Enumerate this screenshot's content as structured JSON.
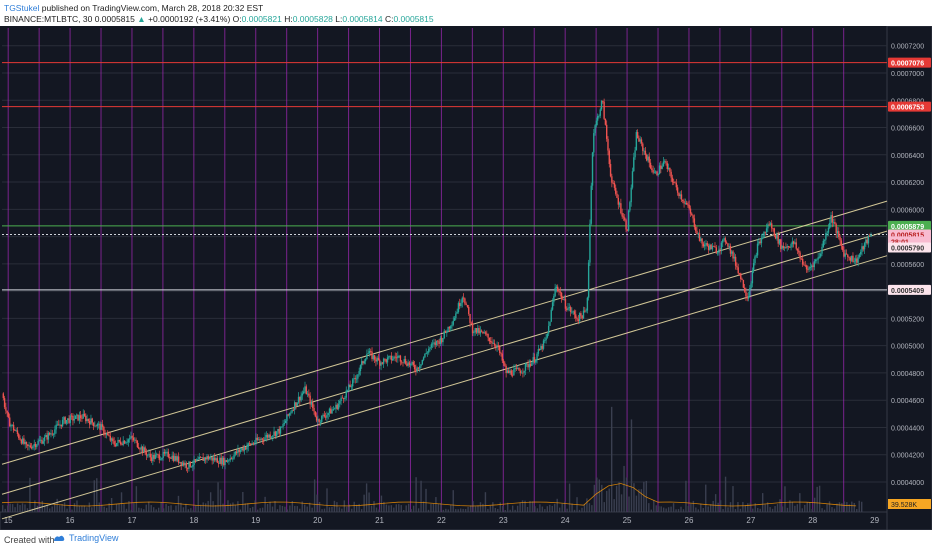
{
  "header": {
    "author": "TGStukel",
    "published": " published on TradingView.com, March 28, 2018 20:32 EST",
    "symbol": "BINANCE:MTLBTC, 30",
    "last": "0.0005815",
    "change_arrow": "▲",
    "change": "+0.0000192 (+3.41%)",
    "o_label": "O:",
    "o": "0.0005821",
    "h_label": "H:",
    "h": "0.0005828",
    "l_label": "L:",
    "l": "0.0005814",
    "c_label": "C:",
    "c": "0.0005815"
  },
  "footer": {
    "created": "Created with",
    "brand": "TradingView"
  },
  "colors": {
    "background": "#131722",
    "up": "#26a69a",
    "down": "#ef5350",
    "grid": "#2a2e39",
    "vertical_marker": "#9c27b0",
    "red_line": "#e53935",
    "green_line": "#4caf50",
    "white_line": "#d1d4dc",
    "channel": "#f3e5ab",
    "volume_ma": "#ff9800"
  },
  "chart_data": {
    "type": "candlestick",
    "symbol": "BINANCE:MTLBTC",
    "interval": "30",
    "x_tick_labels": [
      "15",
      "16",
      "17",
      "18",
      "19",
      "20",
      "21",
      "22",
      "23",
      "24",
      "25",
      "26",
      "27",
      "28",
      "29"
    ],
    "y_tick_labels": [
      "0.0007200",
      "0.0007000",
      "0.0006800",
      "0.0006600",
      "0.0006400",
      "0.0006200",
      "0.0006000",
      "0.0005800",
      "0.0005600",
      "0.0005400",
      "0.0005200",
      "0.0005000",
      "0.0004800",
      "0.0004600",
      "0.0004400",
      "0.0004200",
      "0.0004000"
    ],
    "ylim": [
      0.000378,
      0.000733
    ],
    "xlim": [
      14.9,
      29.2
    ],
    "price_path": [
      [
        14.9,
        0.000465
      ],
      [
        15.0,
        0.000445
      ],
      [
        15.3,
        0.000425
      ],
      [
        15.6,
        0.000432
      ],
      [
        15.9,
        0.000445
      ],
      [
        16.2,
        0.000448
      ],
      [
        16.5,
        0.00044
      ],
      [
        16.7,
        0.000428
      ],
      [
        17.0,
        0.000432
      ],
      [
        17.3,
        0.000418
      ],
      [
        17.6,
        0.00042
      ],
      [
        17.9,
        0.000412
      ],
      [
        18.2,
        0.000418
      ],
      [
        18.5,
        0.000415
      ],
      [
        18.8,
        0.000425
      ],
      [
        19.1,
        0.000432
      ],
      [
        19.4,
        0.000438
      ],
      [
        19.6,
        0.000455
      ],
      [
        19.8,
        0.000468
      ],
      [
        20.0,
        0.000445
      ],
      [
        20.3,
        0.000455
      ],
      [
        20.6,
        0.000475
      ],
      [
        20.8,
        0.000495
      ],
      [
        21.0,
        0.000488
      ],
      [
        21.3,
        0.000492
      ],
      [
        21.6,
        0.000483
      ],
      [
        21.8,
        0.000498
      ],
      [
        22.0,
        0.000505
      ],
      [
        22.2,
        0.00052
      ],
      [
        22.35,
        0.000538
      ],
      [
        22.5,
        0.000512
      ],
      [
        22.7,
        0.000508
      ],
      [
        22.9,
        0.0005
      ],
      [
        23.05,
        0.00048
      ],
      [
        23.3,
        0.000482
      ],
      [
        23.5,
        0.00049
      ],
      [
        23.7,
        0.000505
      ],
      [
        23.85,
        0.000545
      ],
      [
        24.0,
        0.00053
      ],
      [
        24.2,
        0.00052
      ],
      [
        24.35,
        0.000525
      ],
      [
        24.45,
        0.000655
      ],
      [
        24.6,
        0.00068
      ],
      [
        24.75,
        0.00062
      ],
      [
        24.9,
        0.0006
      ],
      [
        25.0,
        0.000585
      ],
      [
        25.15,
        0.000655
      ],
      [
        25.3,
        0.00064
      ],
      [
        25.45,
        0.000625
      ],
      [
        25.6,
        0.000635
      ],
      [
        25.8,
        0.000615
      ],
      [
        26.0,
        0.0006
      ],
      [
        26.2,
        0.000575
      ],
      [
        26.45,
        0.00057
      ],
      [
        26.6,
        0.000578
      ],
      [
        26.8,
        0.000555
      ],
      [
        26.95,
        0.000535
      ],
      [
        27.1,
        0.000572
      ],
      [
        27.3,
        0.00059
      ],
      [
        27.5,
        0.000572
      ],
      [
        27.7,
        0.000575
      ],
      [
        27.9,
        0.000555
      ],
      [
        28.1,
        0.000565
      ],
      [
        28.3,
        0.000595
      ],
      [
        28.5,
        0.000568
      ],
      [
        28.7,
        0.000562
      ],
      [
        28.85,
        0.000575
      ],
      [
        28.95,
        0.0005815
      ]
    ],
    "horizontal_levels": [
      {
        "price": 0.0007076,
        "color": "red",
        "label": "0.0007076"
      },
      {
        "price": 0.0006753,
        "color": "red",
        "label": "0.0006753"
      },
      {
        "price": 0.0005879,
        "color": "green",
        "label": "0.0005879"
      },
      {
        "price": 0.0005815,
        "color": "white-dashed",
        "label": "0.0005815"
      },
      {
        "price": 0.0005409,
        "color": "white",
        "label": "0.0005409"
      }
    ],
    "channel_lines": [
      {
        "from": [
          14.9,
          0.000413
        ],
        "to": [
          29.2,
          0.000606
        ]
      },
      {
        "from": [
          14.9,
          0.000391
        ],
        "to": [
          29.2,
          0.000584
        ]
      },
      {
        "from": [
          14.9,
          0.000373
        ],
        "to": [
          29.2,
          0.000566
        ]
      }
    ],
    "vertical_markers": [
      15.0,
      15.5,
      16.0,
      16.5,
      17.0,
      17.5,
      18.0,
      18.5,
      19.0,
      19.5,
      20.0,
      20.5,
      21.0,
      21.5,
      22.0,
      22.5,
      23.0,
      23.5,
      24.0,
      24.5,
      25.0,
      25.5,
      26.0,
      26.5,
      27.0,
      27.5,
      28.0,
      28.5
    ],
    "price_labels": [
      {
        "text": "0.0007076",
        "style": "red"
      },
      {
        "text": "0.0006753",
        "style": "red"
      },
      {
        "text": "0.0005879",
        "style": "green"
      },
      {
        "text": "0.0005815",
        "style": "pink"
      },
      {
        "text": "28:01",
        "style": "pink"
      },
      {
        "text": "0.0005790",
        "style": "light"
      },
      {
        "text": "0.0005409",
        "style": "light"
      }
    ],
    "volume_label": "39.528K"
  }
}
